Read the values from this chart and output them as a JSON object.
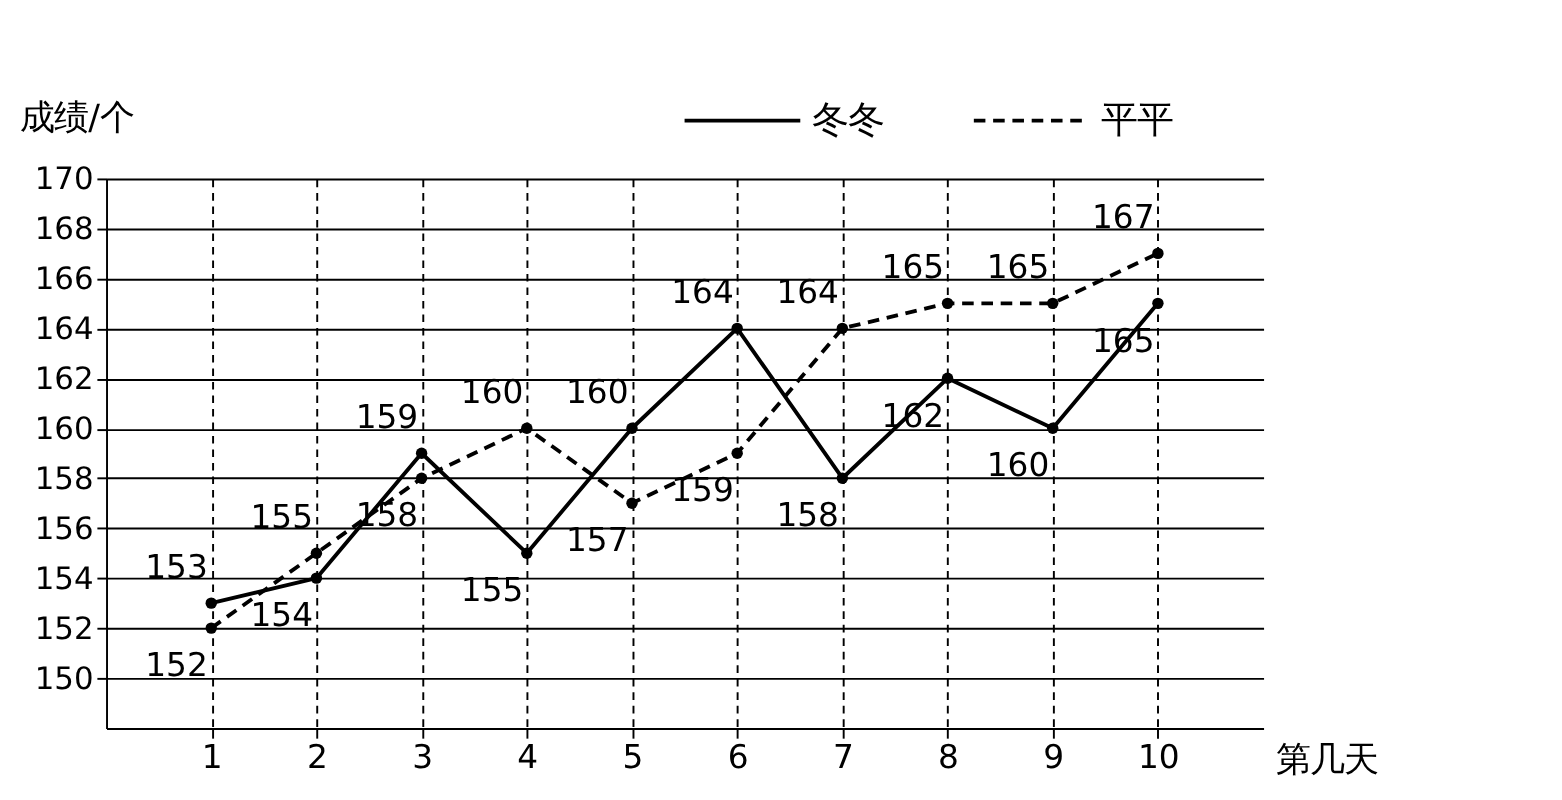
{
  "chart_data": {
    "type": "line",
    "xlabel": "第几天",
    "ylabel": "成绩/个",
    "x": [
      1,
      2,
      3,
      4,
      5,
      6,
      7,
      8,
      9,
      10
    ],
    "series": [
      {
        "name": "冬冬",
        "color": "#000000",
        "line_style": "solid",
        "values": [
          153,
          154,
          159,
          155,
          160,
          164,
          158,
          162,
          160,
          165
        ]
      },
      {
        "name": "平平",
        "color": "#000000",
        "line_style": "dashed",
        "values": [
          152,
          155,
          158,
          160,
          157,
          159,
          164,
          165,
          165,
          167
        ]
      }
    ],
    "xlim": [
      0,
      11
    ],
    "xticks": [
      1,
      2,
      3,
      4,
      5,
      6,
      7,
      8,
      9,
      10
    ],
    "ylim": [
      148,
      170
    ],
    "yticks": [
      150,
      152,
      154,
      156,
      158,
      160,
      162,
      164,
      166,
      168,
      170
    ],
    "grid": true,
    "legend": "top right",
    "marker": "circle",
    "data_labels": true
  }
}
